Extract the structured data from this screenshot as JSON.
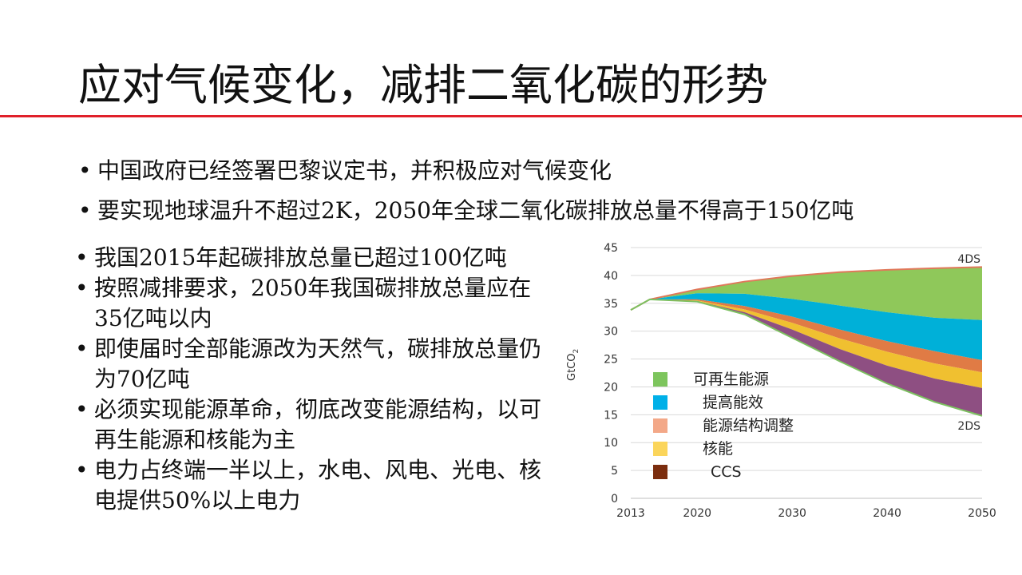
{
  "slide": {
    "title": "应对气候变化，减排二氧化碳的形势"
  },
  "top_bullets": [
    "中国政府已经签署巴黎议定书，并积极应对气候变化",
    "要实现地球温升不超过2K，2050年全球二氧化碳排放总量不得高于150亿吨"
  ],
  "left_bullets": [
    "我国2015年起碳排放总量已超过100亿吨",
    "按照减排要求，2050年我国碳排放总量应在35亿吨以内",
    "即使届时全部能源改为天然气，碳排放总量仍为70亿吨",
    "必须实现能源革命，彻底改变能源结构，以可再生能源和核能为主",
    "电力占终端一半以上，水电、风电、光电、核电提供50%以上电力"
  ],
  "chart_data": {
    "type": "area",
    "ylabel": "GtCO2",
    "xlabel": "",
    "ylim": [
      0,
      45
    ],
    "xlim": [
      2013,
      2050
    ],
    "yticks": [
      0,
      5,
      10,
      15,
      20,
      25,
      30,
      35,
      40,
      45
    ],
    "xticks": [
      "2013",
      "2020",
      "2030",
      "2040",
      "2050"
    ],
    "grid": true,
    "x": [
      2013,
      2015,
      2020,
      2025,
      2030,
      2035,
      2040,
      2045,
      2050
    ],
    "upper_line": {
      "name": "4DS",
      "values": [
        33.8,
        35.7,
        37.5,
        38.9,
        39.9,
        40.6,
        41.0,
        41.3,
        41.5
      ]
    },
    "lower_line": {
      "name": "2DS",
      "values": [
        33.8,
        35.7,
        35.3,
        33.0,
        28.8,
        24.6,
        20.6,
        17.3,
        14.8
      ]
    },
    "series": [
      {
        "name": "可再生能源",
        "color": "#8fc85a",
        "values": [
          33.8,
          35.7,
          37.5,
          38.9,
          39.9,
          40.6,
          41.0,
          41.3,
          41.5
        ]
      },
      {
        "name": "提高能效",
        "color": "#00b0d8",
        "values": [
          33.8,
          35.7,
          36.8,
          36.7,
          35.8,
          34.6,
          33.4,
          32.4,
          32.0
        ]
      },
      {
        "name": "能源结构调整",
        "color": "#e07b45",
        "values": [
          33.8,
          35.7,
          35.7,
          34.5,
          32.6,
          30.3,
          28.2,
          26.4,
          24.8
        ]
      },
      {
        "name": "核能",
        "color": "#f0c030",
        "values": [
          33.8,
          35.7,
          35.5,
          33.9,
          31.5,
          28.7,
          26.3,
          24.2,
          22.6
        ]
      },
      {
        "name": "CCS",
        "color": "#8e4f82",
        "values": [
          33.8,
          35.7,
          35.4,
          33.4,
          30.3,
          26.8,
          23.8,
          21.5,
          19.8
        ]
      }
    ],
    "base_series_color": "#8e4f82",
    "legend": {
      "placement": "bottom-left",
      "items": [
        {
          "label": "可再生能源",
          "color": "#7dc55d"
        },
        {
          "label": "提高能效",
          "color": "#00b0e8"
        },
        {
          "label": "能源结构调整",
          "color": "#f3a888"
        },
        {
          "label": "核能",
          "color": "#fbd55b"
        },
        {
          "label": "CCS",
          "color": "#7b2d0e"
        }
      ]
    },
    "annotations": [
      "4DS",
      "2DS"
    ]
  }
}
